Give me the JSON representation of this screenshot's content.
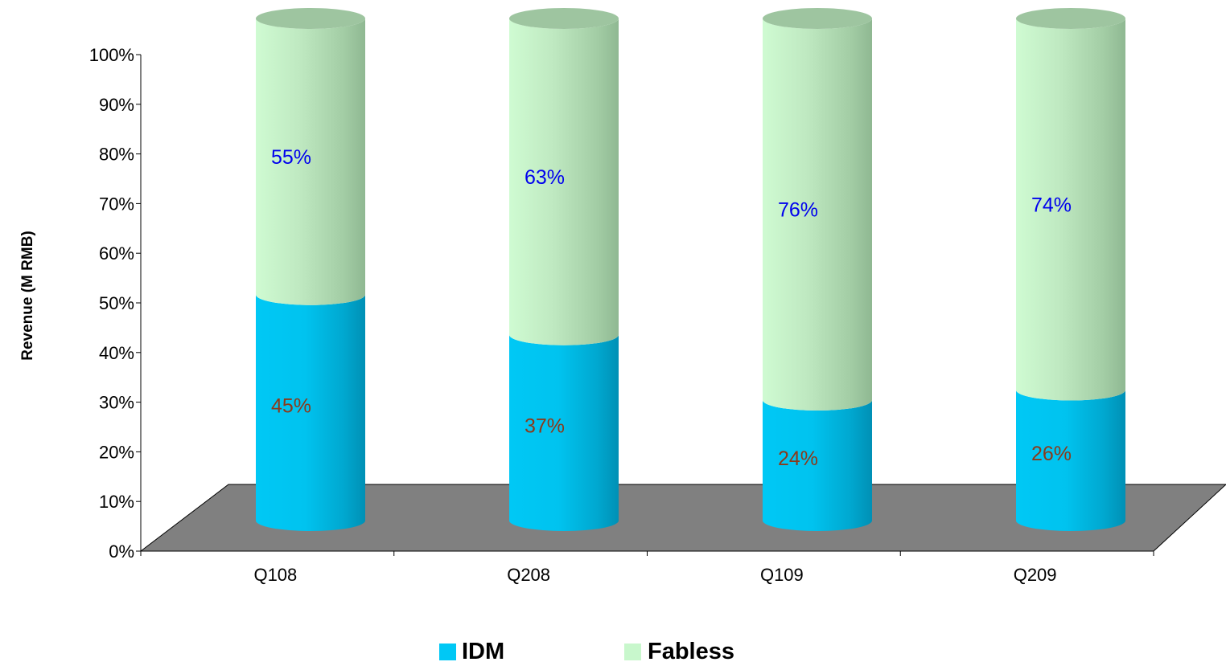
{
  "chart_data": {
    "type": "bar",
    "stacked": true,
    "style": "3d-cylinder",
    "categories": [
      "Q108",
      "Q208",
      "Q109",
      "Q209"
    ],
    "series": [
      {
        "name": "IDM",
        "values": [
          45,
          37,
          24,
          26
        ],
        "color": "#00c8f5",
        "label_color": "#8b3a1a"
      },
      {
        "name": "Fabless",
        "values": [
          55,
          63,
          76,
          74
        ],
        "color": "#c8f7cc",
        "label_color": "#0000ee"
      }
    ],
    "value_labels": {
      "IDM": [
        "45%",
        "37%",
        "24%",
        "26%"
      ],
      "Fabless": [
        "55%",
        "63%",
        "76%",
        "74%"
      ]
    },
    "ylabel": "Revenue (M RMB)",
    "xlabel": "",
    "ylim": [
      0,
      100
    ],
    "yticks": [
      "0%",
      "10%",
      "20%",
      "30%",
      "40%",
      "50%",
      "60%",
      "70%",
      "80%",
      "90%",
      "100%"
    ],
    "floor_color": "#808080",
    "legend_position": "bottom",
    "grid": false
  }
}
